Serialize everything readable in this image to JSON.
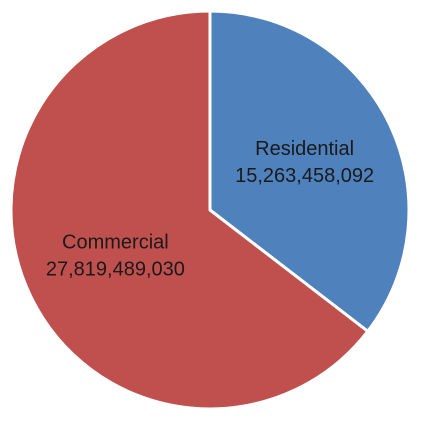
{
  "chart_data": {
    "type": "pie",
    "start": "top",
    "direction": "clockwise",
    "legend": "none",
    "slices": [
      {
        "label": "Residential",
        "value": 15263458092,
        "value_text": "15,263,458,092",
        "color": "#4f81bd"
      },
      {
        "label": "Commercial",
        "value": 27819489030,
        "value_text": "27,819,489,030",
        "color": "#c0504d"
      }
    ]
  }
}
